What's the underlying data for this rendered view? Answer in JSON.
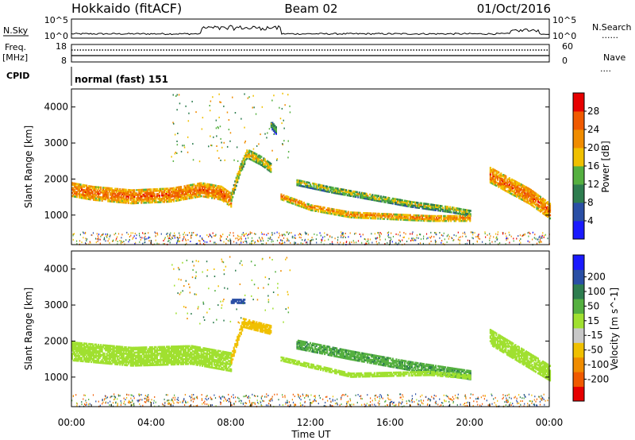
{
  "header": {
    "station": "Hokkaido (fitACF)",
    "beam": "Beam 02",
    "date": "01/Oct/2016"
  },
  "side_labels": {
    "nsky": "N.Sky",
    "freq_line1": "Freq.",
    "freq_line2": "[MHz]",
    "cpid": "CPID",
    "nsearch": "N.Search",
    "nave": "Nave",
    "dotted": "......",
    "dotted_short": "....",
    "ticks_pow_top": "10^5",
    "ticks_pow_bottom": "10^0",
    "freq_top": "18",
    "freq_bottom": "8",
    "nave_top": "60",
    "nave_bottom": "0"
  },
  "cpid_text": "normal (fast) 151",
  "colors": {
    "power": [
      "#1a1aff",
      "#2a4fa5",
      "#2e7d4f",
      "#55b040",
      "#f0c000",
      "#f08c00",
      "#f05a00",
      "#e60000"
    ],
    "velocity": [
      "#e60000",
      "#f05a00",
      "#f08c00",
      "#f0c000",
      "#c8c8c8",
      "#a0e030",
      "#55b040",
      "#2e7d4f",
      "#2a4fa5",
      "#1a1aff"
    ]
  },
  "chart_data": [
    {
      "type": "heatmap",
      "panel": "power",
      "ylabel": "Slant Range [km]",
      "ylim": [
        180,
        4500
      ],
      "yticks": [
        "1000",
        "2000",
        "3000",
        "4000"
      ],
      "colorbar": {
        "label": "Power [dB]",
        "ticks": [
          "4",
          "8",
          "12",
          "16",
          "20",
          "24",
          "28"
        ],
        "range": [
          0,
          32
        ]
      },
      "features": [
        {
          "name": "dusk-band",
          "points": [
            [
              0.0,
              1700
            ],
            [
              1.0,
              1600
            ],
            [
              3.0,
              1500
            ],
            [
              5.0,
              1550
            ],
            [
              6.5,
              1700
            ],
            [
              7.5,
              1600
            ],
            [
              8.0,
              1400
            ]
          ],
          "width": 380,
          "power": 26
        },
        {
          "name": "rise-echo",
          "points": [
            [
              8.0,
              1500
            ],
            [
              8.4,
              2200
            ],
            [
              8.8,
              2700
            ],
            [
              9.5,
              2500
            ],
            [
              10.0,
              2300
            ]
          ],
          "width": 250,
          "power": 20
        },
        {
          "name": "mid-echo",
          "points": [
            [
              10.0,
              3500
            ],
            [
              10.3,
              3300
            ]
          ],
          "width": 200,
          "power": 14
        },
        {
          "name": "upper-arc",
          "points": [
            [
              11.3,
              1900
            ],
            [
              13.0,
              1700
            ],
            [
              15.0,
              1500
            ],
            [
              17.0,
              1300
            ],
            [
              19.0,
              1150
            ],
            [
              20.0,
              1050
            ]
          ],
          "width": 170,
          "power": 18
        },
        {
          "name": "lower-arc",
          "points": [
            [
              10.5,
              1500
            ],
            [
              12.0,
              1200
            ],
            [
              14.0,
              1000
            ],
            [
              16.0,
              950
            ],
            [
              18.0,
              900
            ],
            [
              20.0,
              900
            ]
          ],
          "width": 160,
          "power": 24
        },
        {
          "name": "dawn-band",
          "points": [
            [
              21.0,
              2100
            ],
            [
              22.0,
              1800
            ],
            [
              23.0,
              1500
            ],
            [
              24.0,
              1100
            ]
          ],
          "width": 420,
          "power": 26
        }
      ]
    },
    {
      "type": "heatmap",
      "panel": "velocity",
      "ylabel": "Slant Range [km]",
      "ylim": [
        180,
        4500
      ],
      "yticks": [
        "1000",
        "2000",
        "3000",
        "4000"
      ],
      "colorbar": {
        "label": "Velocity [m s^-1]",
        "ticks": [
          "-200",
          "-100",
          "-50",
          "-15",
          "15",
          "50",
          "100",
          "200"
        ],
        "range": [
          -250,
          250
        ]
      },
      "features": [
        {
          "name": "dusk-band",
          "points": [
            [
              0.0,
              1700
            ],
            [
              3.0,
              1550
            ],
            [
              6.0,
              1600
            ],
            [
              8.0,
              1400
            ]
          ],
          "width": 500,
          "velocity": 0
        },
        {
          "name": "rise-echo",
          "points": [
            [
              8.0,
              1500
            ],
            [
              8.6,
              2500
            ],
            [
              10.0,
              2300
            ]
          ],
          "width": 250,
          "velocity": -30
        },
        {
          "name": "high-echo",
          "points": [
            [
              8.0,
              3100
            ],
            [
              8.7,
              3100
            ]
          ],
          "width": 120,
          "velocity": 120
        },
        {
          "name": "upper-arc",
          "points": [
            [
              11.3,
              1900
            ],
            [
              14.0,
              1600
            ],
            [
              17.0,
              1300
            ],
            [
              20.0,
              1050
            ]
          ],
          "width": 250,
          "velocity": 40
        },
        {
          "name": "lower-arc",
          "points": [
            [
              10.5,
              1500
            ],
            [
              14.0,
              1050
            ],
            [
              18.0,
              1100
            ],
            [
              20.0,
              1000
            ]
          ],
          "width": 120,
          "velocity": 0
        },
        {
          "name": "dawn-band",
          "points": [
            [
              21.0,
              2100
            ],
            [
              22.5,
              1600
            ],
            [
              24.0,
              1100
            ]
          ],
          "width": 420,
          "velocity": 0
        }
      ]
    }
  ],
  "xaxis": {
    "label": "Time UT",
    "ticks": [
      "00:00",
      "04:00",
      "08:00",
      "12:00",
      "16:00",
      "20:00",
      "00:00"
    ],
    "range_hours": [
      0,
      24
    ]
  }
}
